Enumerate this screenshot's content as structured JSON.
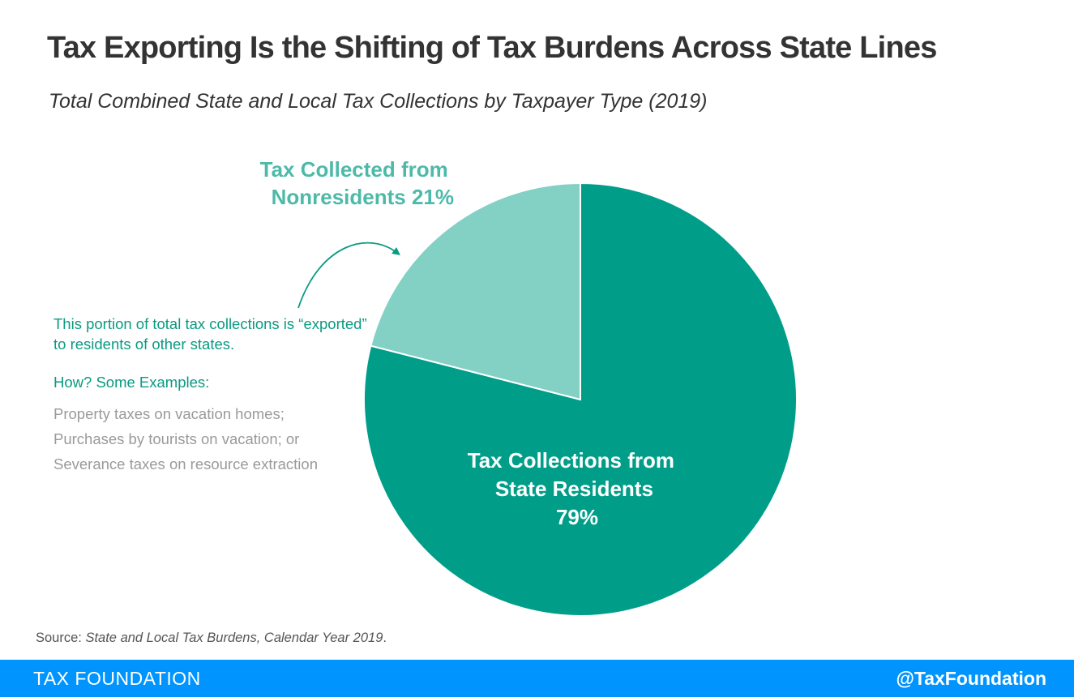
{
  "title": "Tax Exporting Is the Shifting of Tax Burdens Across State Lines",
  "subtitle": "Total Combined State and Local Tax Collections by Taxpayer Type (2019)",
  "colors": {
    "residents": "#009e89",
    "nonresidents": "#83d0c5",
    "accent": "#0a9a82",
    "footer": "#0094ff"
  },
  "chart_data": {
    "type": "pie",
    "title": "Total Combined State and Local Tax Collections by Taxpayer Type (2019)",
    "slices": [
      {
        "label_lines": [
          "Tax Collections from",
          "State Residents",
          "79%"
        ],
        "value": 79
      },
      {
        "label_lines": [
          "Tax Collected from",
          "Nonresidents 21%"
        ],
        "value": 21
      }
    ]
  },
  "annotation": {
    "note": "This portion of total tax collections is “exported” to residents of other states.",
    "how_heading": "How? Some Examples:",
    "examples": [
      "Property taxes on vacation homes;",
      "Purchases by tourists on vacation; or",
      "Severance taxes on resource extraction"
    ]
  },
  "source": {
    "prefix": "Source: ",
    "title": "State and Local Tax Burdens, Calendar Year 2019",
    "suffix": "."
  },
  "footer": {
    "brand": "TAX FOUNDATION",
    "handle": "@TaxFoundation"
  }
}
